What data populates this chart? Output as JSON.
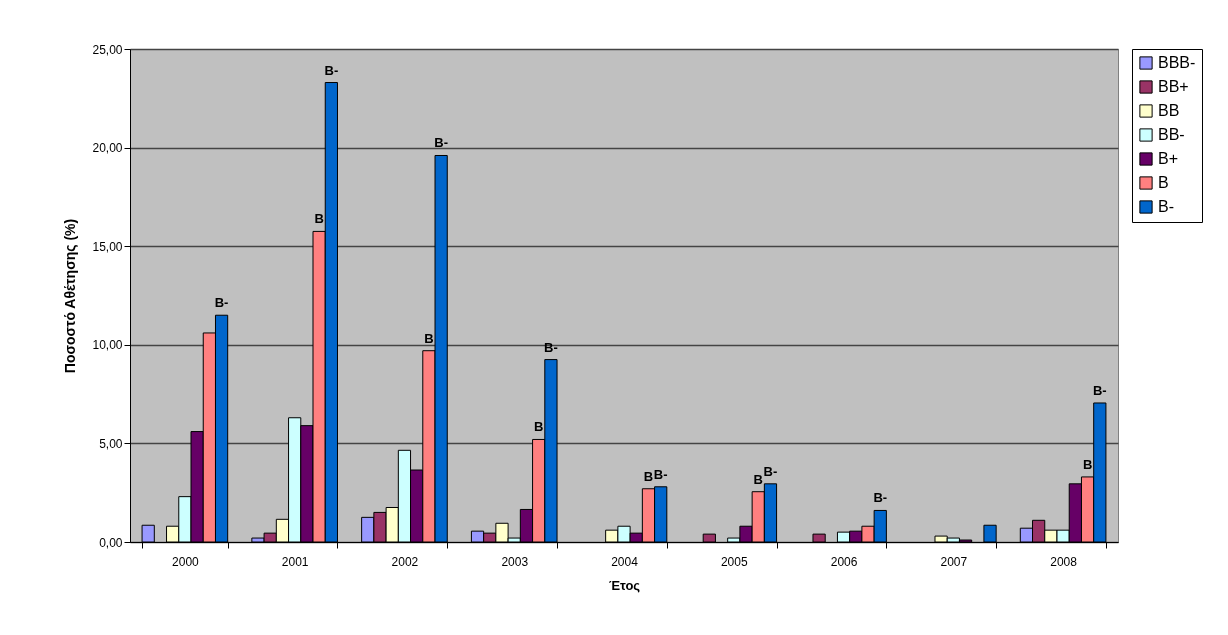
{
  "chart_data": {
    "type": "bar",
    "xlabel": "Έτος",
    "ylabel": "Ποσοστό Αθέτησης (%)",
    "categories": [
      "2000",
      "2001",
      "2002",
      "2003",
      "2004",
      "2005",
      "2006",
      "2007",
      "2008"
    ],
    "series": [
      {
        "name": "BBB-",
        "color": "#9999ff",
        "values": [
          0.85,
          0.2,
          1.25,
          0.55,
          null,
          null,
          null,
          null,
          0.7
        ]
      },
      {
        "name": "BB+",
        "color": "#993366",
        "values": [
          null,
          0.45,
          1.5,
          0.45,
          null,
          0.4,
          0.4,
          null,
          1.1
        ]
      },
      {
        "name": "BB",
        "color": "#ffffcc",
        "values": [
          0.8,
          1.15,
          1.75,
          0.95,
          0.6,
          null,
          null,
          0.3,
          0.6
        ]
      },
      {
        "name": "BB-",
        "color": "#ccffff",
        "values": [
          2.3,
          6.3,
          4.65,
          0.2,
          0.8,
          0.2,
          0.5,
          0.2,
          0.6
        ]
      },
      {
        "name": "B+",
        "color": "#660066",
        "values": [
          5.6,
          5.9,
          3.65,
          1.65,
          0.45,
          0.8,
          0.55,
          0.1,
          2.95
        ]
      },
      {
        "name": "B",
        "color": "#ff8080",
        "values": [
          10.6,
          15.75,
          9.7,
          5.2,
          2.7,
          2.55,
          0.8,
          null,
          3.3
        ],
        "value_labels": [
          null,
          "B",
          "B",
          "B",
          "B",
          "B",
          null,
          null,
          "B"
        ]
      },
      {
        "name": "B-",
        "color": "#0066cc",
        "values": [
          11.5,
          23.3,
          19.6,
          9.25,
          2.8,
          2.95,
          1.6,
          0.85,
          7.05
        ],
        "value_labels": [
          "B-",
          "B-",
          "B-",
          "B-",
          "B-",
          "B-",
          "B-",
          null,
          "B-"
        ]
      }
    ],
    "ylim": [
      0,
      25
    ],
    "yticks": [
      {
        "value": 0,
        "label": "0,00"
      },
      {
        "value": 5,
        "label": "5,00"
      },
      {
        "value": 10,
        "label": "10,00"
      },
      {
        "value": 15,
        "label": "15,00"
      },
      {
        "value": 20,
        "label": "20,00"
      },
      {
        "value": 25,
        "label": "25,00"
      }
    ],
    "grid": "y",
    "legend": "right"
  }
}
